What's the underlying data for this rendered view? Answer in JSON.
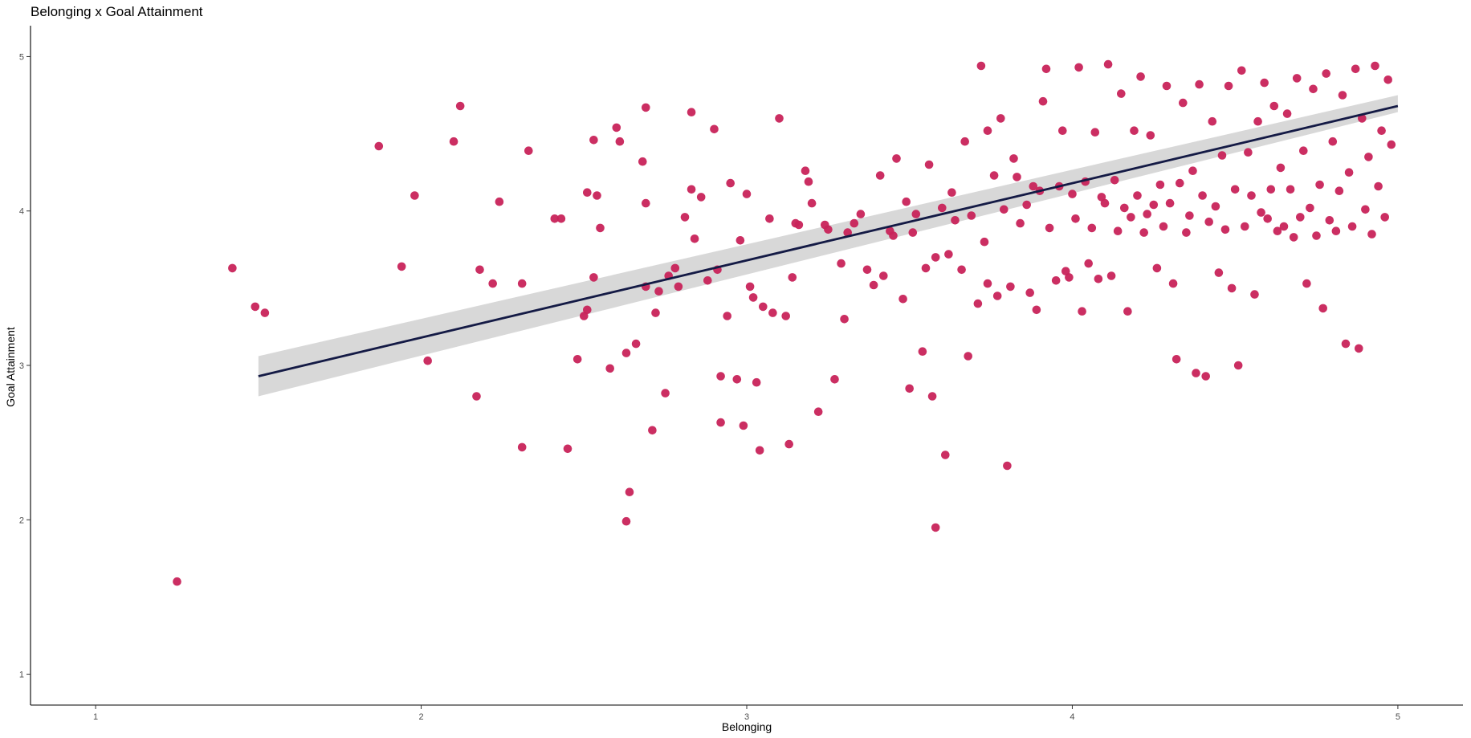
{
  "chart_data": {
    "type": "scatter",
    "title": "Belonging x Goal Attainment",
    "xlabel": "Belonging",
    "ylabel": "Goal Attainment",
    "xlim": [
      0.8,
      5.2
    ],
    "ylim": [
      0.8,
      5.2
    ],
    "xticks": [
      1,
      2,
      3,
      4,
      5
    ],
    "yticks": [
      1,
      2,
      3,
      4,
      5
    ],
    "grid": false,
    "legend": "none",
    "colors": {
      "points": "#c8235a",
      "line": "#141a45",
      "band": "#d4d4d4"
    },
    "points": [
      [
        1.25,
        1.6
      ],
      [
        1.42,
        3.63
      ],
      [
        1.49,
        3.38
      ],
      [
        1.52,
        3.34
      ],
      [
        1.87,
        4.42
      ],
      [
        1.94,
        3.64
      ],
      [
        1.98,
        4.1
      ],
      [
        2.02,
        3.03
      ],
      [
        2.1,
        4.45
      ],
      [
        2.12,
        4.68
      ],
      [
        2.17,
        2.8
      ],
      [
        2.18,
        3.62
      ],
      [
        2.22,
        3.53
      ],
      [
        2.24,
        4.06
      ],
      [
        2.31,
        3.53
      ],
      [
        2.31,
        2.47
      ],
      [
        2.33,
        4.39
      ],
      [
        2.41,
        3.95
      ],
      [
        2.43,
        3.95
      ],
      [
        2.45,
        2.46
      ],
      [
        2.48,
        3.04
      ],
      [
        2.5,
        3.32
      ],
      [
        2.51,
        3.36
      ],
      [
        2.51,
        4.12
      ],
      [
        2.53,
        3.57
      ],
      [
        2.53,
        4.46
      ],
      [
        2.54,
        4.1
      ],
      [
        2.55,
        3.89
      ],
      [
        2.58,
        2.98
      ],
      [
        2.6,
        4.54
      ],
      [
        2.61,
        4.45
      ],
      [
        2.63,
        1.99
      ],
      [
        2.63,
        3.08
      ],
      [
        2.64,
        2.18
      ],
      [
        2.66,
        3.14
      ],
      [
        2.68,
        4.32
      ],
      [
        2.69,
        4.05
      ],
      [
        2.69,
        3.51
      ],
      [
        2.69,
        4.67
      ],
      [
        2.71,
        2.58
      ],
      [
        2.72,
        3.34
      ],
      [
        2.73,
        3.48
      ],
      [
        2.75,
        2.82
      ],
      [
        2.76,
        3.58
      ],
      [
        2.78,
        3.63
      ],
      [
        2.79,
        3.51
      ],
      [
        2.81,
        3.96
      ],
      [
        2.83,
        4.64
      ],
      [
        2.83,
        4.14
      ],
      [
        2.84,
        3.82
      ],
      [
        2.86,
        4.09
      ],
      [
        2.88,
        3.55
      ],
      [
        2.9,
        4.53
      ],
      [
        2.91,
        3.62
      ],
      [
        2.92,
        2.93
      ],
      [
        2.92,
        2.63
      ],
      [
        2.94,
        3.32
      ],
      [
        2.95,
        4.18
      ],
      [
        2.97,
        2.91
      ],
      [
        2.98,
        3.81
      ],
      [
        2.99,
        2.61
      ],
      [
        3.0,
        4.11
      ],
      [
        3.01,
        3.51
      ],
      [
        3.02,
        3.44
      ],
      [
        3.03,
        2.89
      ],
      [
        3.04,
        2.45
      ],
      [
        3.05,
        3.38
      ],
      [
        3.07,
        3.95
      ],
      [
        3.08,
        3.34
      ],
      [
        3.1,
        4.6
      ],
      [
        3.12,
        3.32
      ],
      [
        3.13,
        2.49
      ],
      [
        3.14,
        3.57
      ],
      [
        3.15,
        3.92
      ],
      [
        3.16,
        3.91
      ],
      [
        3.18,
        4.26
      ],
      [
        3.19,
        4.19
      ],
      [
        3.2,
        4.05
      ],
      [
        3.22,
        2.7
      ],
      [
        3.24,
        3.91
      ],
      [
        3.25,
        3.88
      ],
      [
        3.27,
        2.91
      ],
      [
        3.29,
        3.66
      ],
      [
        3.3,
        3.3
      ],
      [
        3.31,
        3.86
      ],
      [
        3.33,
        3.92
      ],
      [
        3.35,
        3.98
      ],
      [
        3.37,
        3.62
      ],
      [
        3.39,
        3.52
      ],
      [
        3.41,
        4.23
      ],
      [
        3.42,
        3.58
      ],
      [
        3.44,
        3.87
      ],
      [
        3.45,
        3.84
      ],
      [
        3.46,
        4.34
      ],
      [
        3.48,
        3.43
      ],
      [
        3.49,
        4.06
      ],
      [
        3.5,
        2.85
      ],
      [
        3.51,
        3.86
      ],
      [
        3.52,
        3.98
      ],
      [
        3.54,
        3.09
      ],
      [
        3.55,
        3.63
      ],
      [
        3.56,
        4.3
      ],
      [
        3.57,
        2.8
      ],
      [
        3.58,
        3.7
      ],
      [
        3.58,
        1.95
      ],
      [
        3.6,
        4.02
      ],
      [
        3.61,
        2.42
      ],
      [
        3.62,
        3.72
      ],
      [
        3.63,
        4.12
      ],
      [
        3.64,
        3.94
      ],
      [
        3.66,
        3.62
      ],
      [
        3.67,
        4.45
      ],
      [
        3.68,
        3.06
      ],
      [
        3.69,
        3.97
      ],
      [
        3.71,
        3.4
      ],
      [
        3.72,
        4.94
      ],
      [
        3.73,
        3.8
      ],
      [
        3.74,
        4.52
      ],
      [
        3.74,
        3.53
      ],
      [
        3.76,
        4.23
      ],
      [
        3.77,
        3.45
      ],
      [
        3.78,
        4.6
      ],
      [
        3.79,
        4.01
      ],
      [
        3.8,
        2.35
      ],
      [
        3.81,
        3.51
      ],
      [
        3.82,
        4.34
      ],
      [
        3.83,
        4.22
      ],
      [
        3.84,
        3.92
      ],
      [
        3.86,
        4.04
      ],
      [
        3.87,
        3.47
      ],
      [
        3.88,
        4.16
      ],
      [
        3.89,
        3.36
      ],
      [
        3.9,
        4.13
      ],
      [
        3.91,
        4.71
      ],
      [
        3.92,
        4.92
      ],
      [
        3.93,
        3.89
      ],
      [
        3.95,
        3.55
      ],
      [
        3.96,
        4.16
      ],
      [
        3.97,
        4.52
      ],
      [
        3.98,
        3.61
      ],
      [
        3.99,
        3.57
      ],
      [
        4.0,
        4.11
      ],
      [
        4.01,
        3.95
      ],
      [
        4.02,
        4.93
      ],
      [
        4.03,
        3.35
      ],
      [
        4.04,
        4.19
      ],
      [
        4.05,
        3.66
      ],
      [
        4.06,
        3.89
      ],
      [
        4.07,
        4.51
      ],
      [
        4.08,
        3.56
      ],
      [
        4.09,
        4.09
      ],
      [
        4.1,
        4.05
      ],
      [
        4.11,
        4.95
      ],
      [
        4.12,
        3.58
      ],
      [
        4.13,
        4.2
      ],
      [
        4.14,
        3.87
      ],
      [
        4.15,
        4.76
      ],
      [
        4.16,
        4.02
      ],
      [
        4.17,
        3.35
      ],
      [
        4.18,
        3.96
      ],
      [
        4.19,
        4.52
      ],
      [
        4.2,
        4.1
      ],
      [
        4.21,
        4.87
      ],
      [
        4.22,
        3.86
      ],
      [
        4.23,
        3.98
      ],
      [
        4.24,
        4.49
      ],
      [
        4.25,
        4.04
      ],
      [
        4.26,
        3.63
      ],
      [
        4.27,
        4.17
      ],
      [
        4.28,
        3.9
      ],
      [
        4.29,
        4.81
      ],
      [
        4.3,
        4.05
      ],
      [
        4.31,
        3.53
      ],
      [
        4.32,
        3.04
      ],
      [
        4.33,
        4.18
      ],
      [
        4.34,
        4.7
      ],
      [
        4.35,
        3.86
      ],
      [
        4.36,
        3.97
      ],
      [
        4.37,
        4.26
      ],
      [
        4.38,
        2.95
      ],
      [
        4.39,
        4.82
      ],
      [
        4.4,
        4.1
      ],
      [
        4.41,
        2.93
      ],
      [
        4.42,
        3.93
      ],
      [
        4.43,
        4.58
      ],
      [
        4.44,
        4.03
      ],
      [
        4.45,
        3.6
      ],
      [
        4.46,
        4.36
      ],
      [
        4.47,
        3.88
      ],
      [
        4.48,
        4.81
      ],
      [
        4.49,
        3.5
      ],
      [
        4.5,
        4.14
      ],
      [
        4.51,
        3.0
      ],
      [
        4.52,
        4.91
      ],
      [
        4.53,
        3.9
      ],
      [
        4.54,
        4.38
      ],
      [
        4.55,
        4.1
      ],
      [
        4.56,
        3.46
      ],
      [
        4.57,
        4.58
      ],
      [
        4.58,
        3.99
      ],
      [
        4.59,
        4.83
      ],
      [
        4.6,
        3.95
      ],
      [
        4.61,
        4.14
      ],
      [
        4.62,
        4.68
      ],
      [
        4.63,
        3.87
      ],
      [
        4.64,
        4.28
      ],
      [
        4.65,
        3.9
      ],
      [
        4.66,
        4.63
      ],
      [
        4.67,
        4.14
      ],
      [
        4.68,
        3.83
      ],
      [
        4.69,
        4.86
      ],
      [
        4.7,
        3.96
      ],
      [
        4.71,
        4.39
      ],
      [
        4.72,
        3.53
      ],
      [
        4.73,
        4.02
      ],
      [
        4.74,
        4.79
      ],
      [
        4.75,
        3.84
      ],
      [
        4.76,
        4.17
      ],
      [
        4.77,
        3.37
      ],
      [
        4.78,
        4.89
      ],
      [
        4.79,
        3.94
      ],
      [
        4.8,
        4.45
      ],
      [
        4.81,
        3.87
      ],
      [
        4.82,
        4.13
      ],
      [
        4.83,
        4.75
      ],
      [
        4.84,
        3.14
      ],
      [
        4.85,
        4.25
      ],
      [
        4.86,
        3.9
      ],
      [
        4.87,
        4.92
      ],
      [
        4.88,
        3.11
      ],
      [
        4.89,
        4.6
      ],
      [
        4.9,
        4.01
      ],
      [
        4.91,
        4.35
      ],
      [
        4.92,
        3.85
      ],
      [
        4.93,
        4.94
      ],
      [
        4.94,
        4.16
      ],
      [
        4.95,
        4.52
      ],
      [
        4.96,
        3.96
      ],
      [
        4.97,
        4.85
      ],
      [
        4.98,
        4.43
      ]
    ],
    "fit": {
      "x": [
        1.5,
        5.0
      ],
      "y": [
        2.93,
        4.68
      ],
      "ci_low": [
        2.8,
        4.64
      ],
      "ci_high": [
        3.06,
        4.75
      ]
    }
  }
}
